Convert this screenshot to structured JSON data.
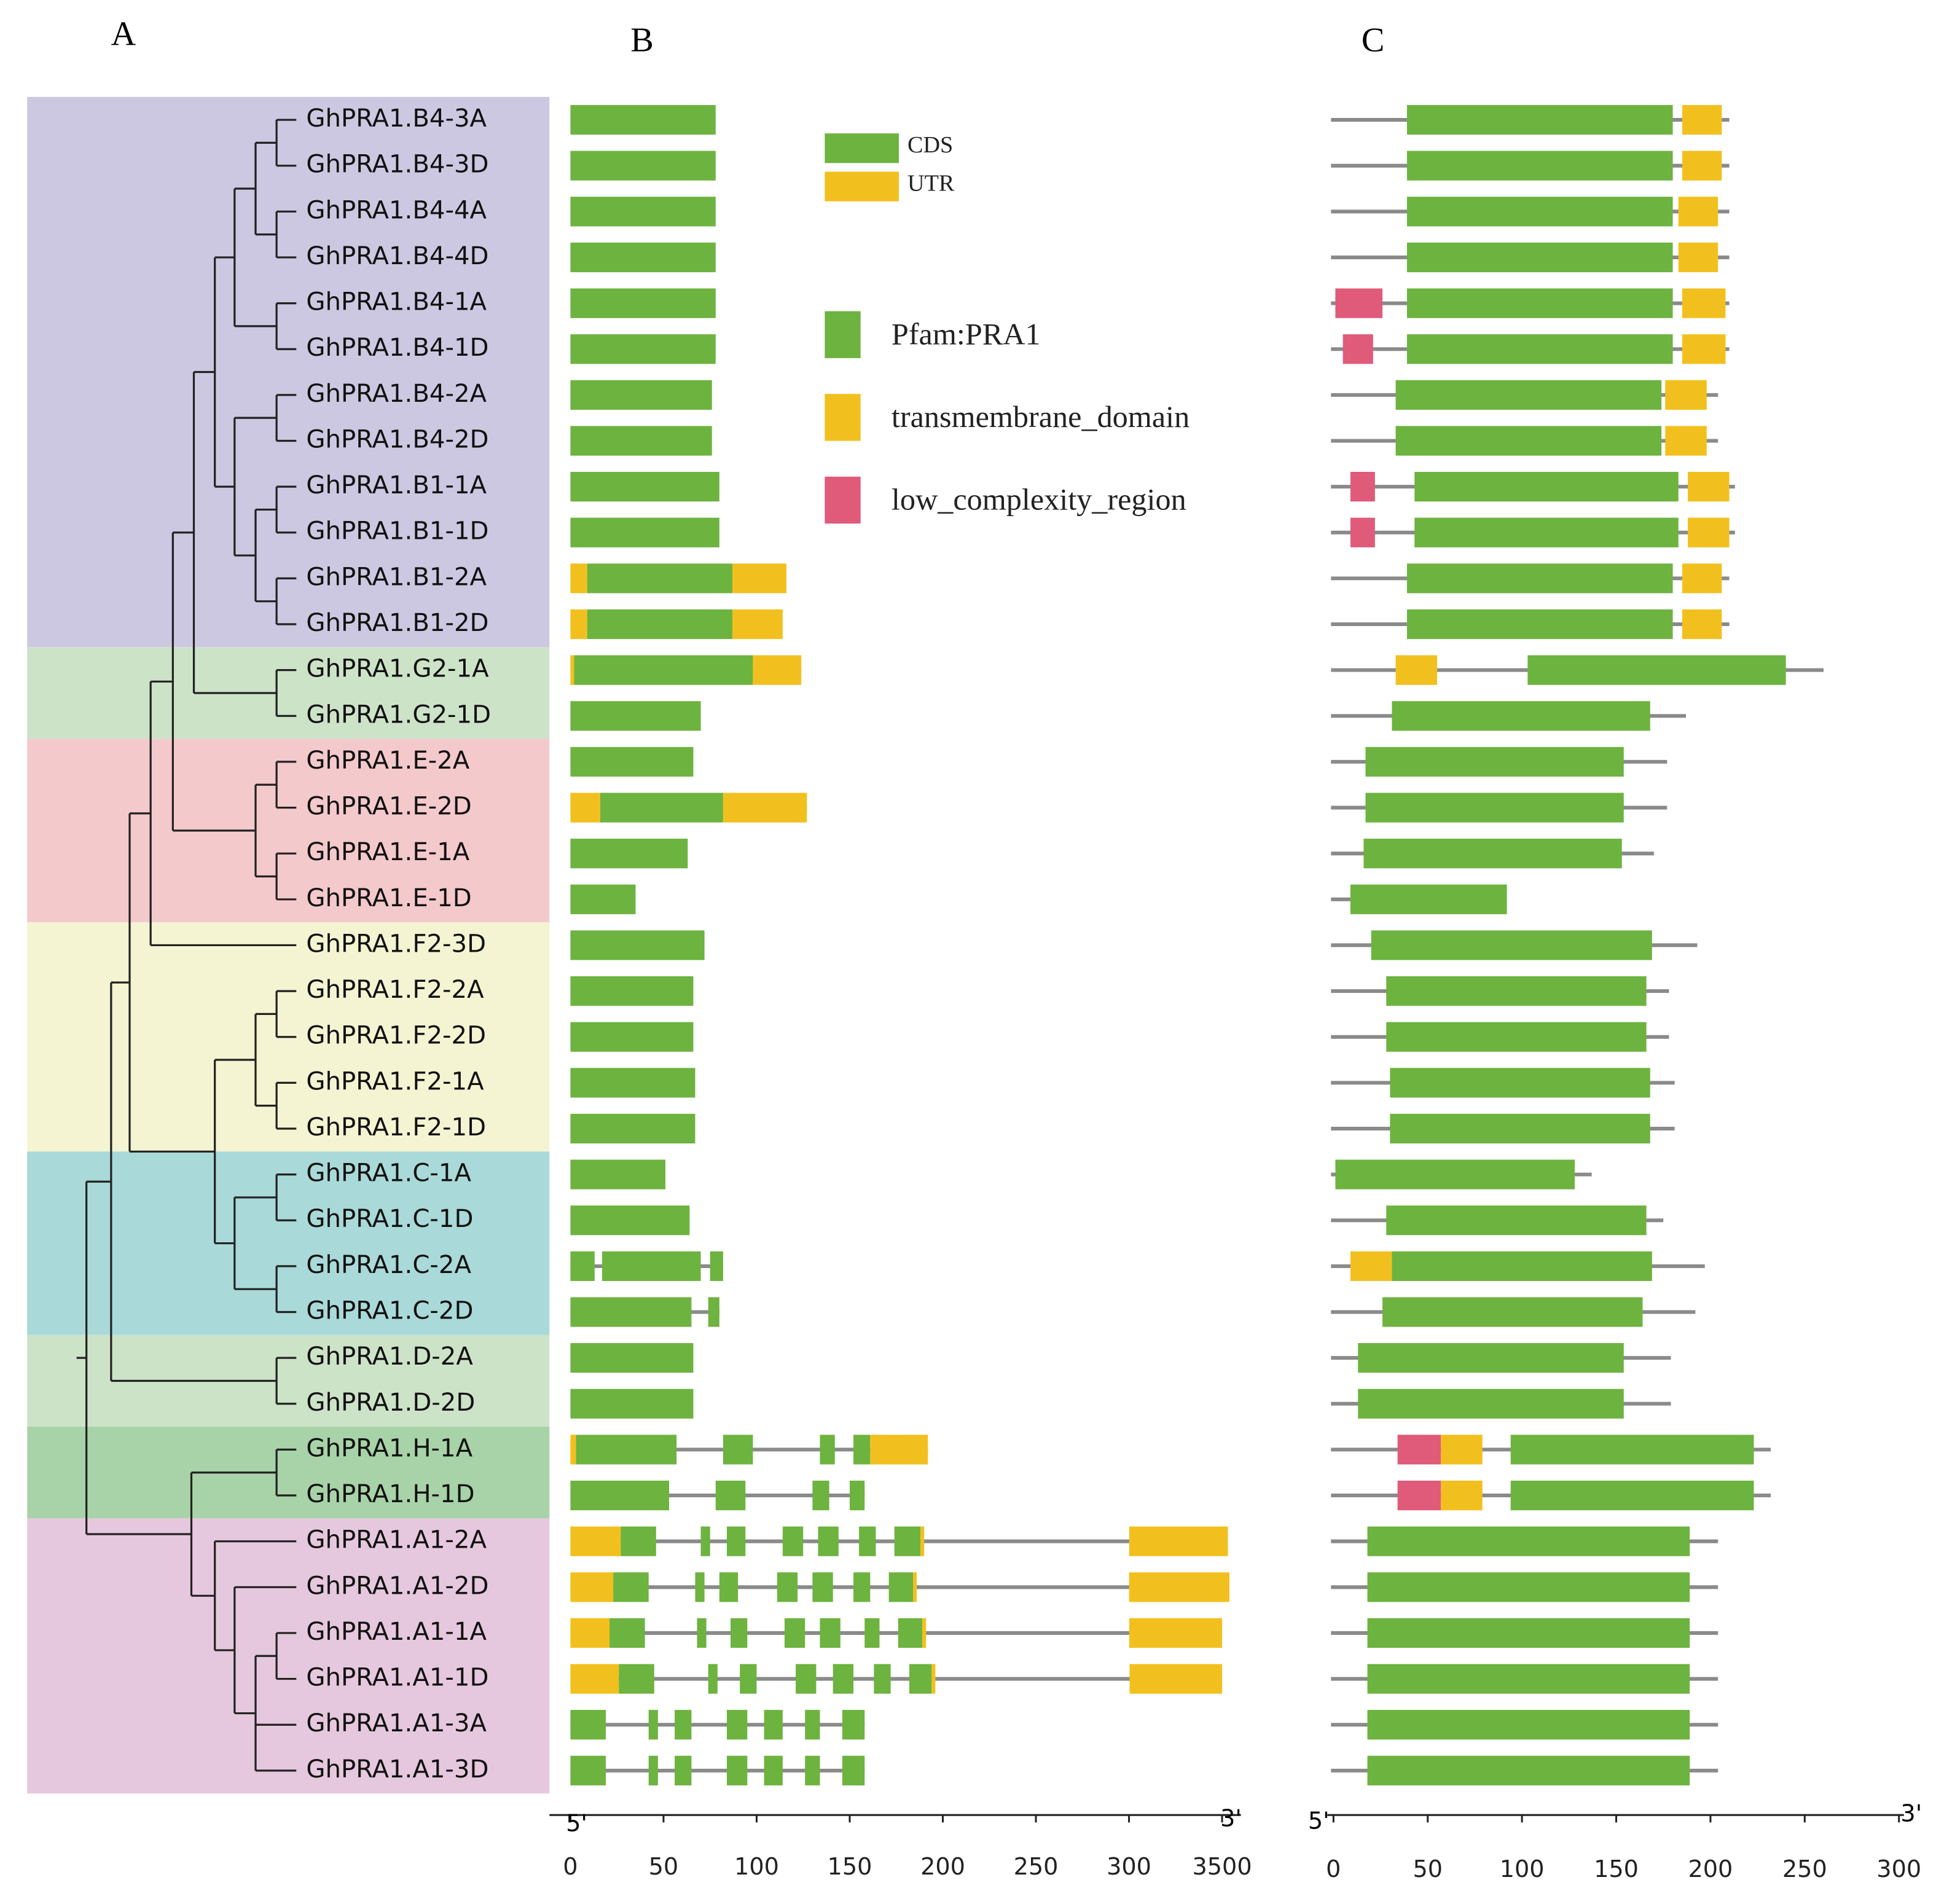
{
  "panels": {
    "A": "A",
    "B": "B",
    "C": "C"
  },
  "genes": [
    "GhPRA1.B4-3A",
    "GhPRA1.B4-3D",
    "GhPRA1.B4-4A",
    "GhPRA1.B4-4D",
    "GhPRA1.B4-1A",
    "GhPRA1.B4-1D",
    "GhPRA1.B4-2A",
    "GhPRA1.B4-2D",
    "GhPRA1.B1-1A",
    "GhPRA1.B1-1D",
    "GhPRA1.B1-2A",
    "GhPRA1.B1-2D",
    "GhPRA1.G2-1A",
    "GhPRA1.G2-1D",
    "GhPRA1.E-2A",
    "GhPRA1.E-2D",
    "GhPRA1.E-1A",
    "GhPRA1.E-1D",
    "GhPRA1.F2-3D",
    "GhPRA1.F2-2A",
    "GhPRA1.F2-2D",
    "GhPRA1.F2-1A",
    "GhPRA1.F2-1D",
    "GhPRA1.C-1A",
    "GhPRA1.C-1D",
    "GhPRA1.C-2A",
    "GhPRA1.C-2D",
    "GhPRA1.D-2A",
    "GhPRA1.D-2D",
    "GhPRA1.H-1A",
    "GhPRA1.H-1D",
    "GhPRA1.A1-2A",
    "GhPRA1.A1-2D",
    "GhPRA1.A1-1A",
    "GhPRA1.A1-1D",
    "GhPRA1.A1-3A",
    "GhPRA1.A1-3D"
  ],
  "legend": {
    "gene_features": [
      {
        "name": "CDS",
        "color": "#6db33f"
      },
      {
        "name": "UTR",
        "color": "#f2c01e"
      }
    ],
    "domains": [
      {
        "name": "Pfam:PRA1",
        "color": "#6db33f"
      },
      {
        "name": "transmembrane_domain",
        "color": "#f2c01e"
      },
      {
        "name": "low_complexity_region",
        "color": "#e05a7a"
      }
    ]
  },
  "gene_structure": {
    "five_prime": "5'",
    "three_prime": "3'",
    "xticks": [
      0,
      50,
      100,
      150,
      200,
      250,
      300,
      3500
    ],
    "genes": [
      [
        [
          "CDS",
          0,
          78
        ]
      ],
      [
        [
          "CDS",
          0,
          78
        ]
      ],
      [
        [
          "CDS",
          0,
          78
        ]
      ],
      [
        [
          "CDS",
          0,
          78
        ]
      ],
      [
        [
          "CDS",
          0,
          78
        ]
      ],
      [
        [
          "CDS",
          0,
          78
        ]
      ],
      [
        [
          "CDS",
          0,
          76
        ]
      ],
      [
        [
          "CDS",
          0,
          76
        ]
      ],
      [
        [
          "CDS",
          0,
          80
        ]
      ],
      [
        [
          "CDS",
          0,
          80
        ]
      ],
      [
        [
          "UTR",
          0,
          9
        ],
        [
          "CDS",
          9,
          87
        ],
        [
          "UTR",
          87,
          116
        ]
      ],
      [
        [
          "UTR",
          0,
          9
        ],
        [
          "CDS",
          9,
          87
        ],
        [
          "UTR",
          87,
          114
        ]
      ],
      [
        [
          "UTR",
          0,
          2
        ],
        [
          "CDS",
          2,
          98
        ],
        [
          "UTR",
          98,
          124
        ]
      ],
      [
        [
          "CDS",
          0,
          70
        ]
      ],
      [
        [
          "CDS",
          0,
          66
        ]
      ],
      [
        [
          "UTR",
          0,
          16
        ],
        [
          "CDS",
          16,
          82
        ],
        [
          "UTR",
          82,
          127
        ]
      ],
      [
        [
          "CDS",
          0,
          63
        ]
      ],
      [
        [
          "CDS",
          0,
          35
        ]
      ],
      [
        [
          "CDS",
          0,
          72
        ]
      ],
      [
        [
          "CDS",
          0,
          66
        ]
      ],
      [
        [
          "CDS",
          0,
          66
        ]
      ],
      [
        [
          "CDS",
          0,
          67
        ]
      ],
      [
        [
          "CDS",
          0,
          67
        ]
      ],
      [
        [
          "CDS",
          0,
          51
        ]
      ],
      [
        [
          "CDS",
          0,
          64
        ]
      ],
      [
        [
          "CDS",
          0,
          13
        ],
        [
          "CDS",
          17,
          70
        ],
        [
          "CDS",
          75,
          82
        ]
      ],
      [
        [
          "CDS",
          0,
          65
        ],
        [
          "CDS",
          74,
          80
        ]
      ],
      [
        [
          "CDS",
          0,
          66
        ]
      ],
      [
        [
          "CDS",
          0,
          66
        ]
      ],
      [
        [
          "UTR",
          0,
          3
        ],
        [
          "CDS",
          3,
          57
        ],
        [
          "CDS",
          82,
          98
        ],
        [
          "CDS",
          134,
          142
        ],
        [
          "CDS",
          152,
          161
        ],
        [
          "UTR",
          161,
          192
        ]
      ],
      [
        [
          "CDS",
          0,
          53
        ],
        [
          "CDS",
          78,
          94
        ],
        [
          "CDS",
          130,
          139
        ],
        [
          "CDS",
          150,
          158
        ]
      ],
      [
        [
          "UTR",
          0,
          27
        ],
        [
          "CDS",
          27,
          46
        ],
        [
          "CDS",
          70,
          75
        ],
        [
          "CDS",
          84,
          94
        ],
        [
          "CDS",
          114,
          125
        ],
        [
          "CDS",
          133,
          144
        ],
        [
          "CDS",
          155,
          164
        ],
        [
          "CDS",
          174,
          188
        ],
        [
          "UTR",
          188,
          190
        ],
        [
          "UTR",
          305,
          3700
        ]
      ],
      [
        [
          "UTR",
          0,
          23
        ],
        [
          "CDS",
          23,
          42
        ],
        [
          "CDS",
          67,
          72
        ],
        [
          "CDS",
          80,
          90
        ],
        [
          "CDS",
          111,
          122
        ],
        [
          "CDS",
          130,
          141
        ],
        [
          "CDS",
          152,
          161
        ],
        [
          "CDS",
          171,
          184
        ],
        [
          "UTR",
          184,
          186
        ],
        [
          "UTR",
          303,
          3750
        ]
      ],
      [
        [
          "UTR",
          0,
          21
        ],
        [
          "CDS",
          21,
          40
        ],
        [
          "CDS",
          68,
          73
        ],
        [
          "CDS",
          86,
          95
        ],
        [
          "CDS",
          115,
          126
        ],
        [
          "CDS",
          134,
          145
        ],
        [
          "CDS",
          158,
          166
        ],
        [
          "CDS",
          176,
          189
        ],
        [
          "UTR",
          189,
          191
        ],
        [
          "UTR",
          307,
          3500
        ]
      ],
      [
        [
          "UTR",
          0,
          26
        ],
        [
          "CDS",
          26,
          45
        ],
        [
          "CDS",
          74,
          79
        ],
        [
          "CDS",
          91,
          100
        ],
        [
          "CDS",
          121,
          132
        ],
        [
          "CDS",
          141,
          152
        ],
        [
          "CDS",
          163,
          172
        ],
        [
          "CDS",
          182,
          194
        ],
        [
          "UTR",
          194,
          196
        ],
        [
          "UTR",
          320,
          3500
        ]
      ],
      [
        [
          "CDS",
          0,
          19
        ],
        [
          "CDS",
          42,
          47
        ],
        [
          "CDS",
          56,
          65
        ],
        [
          "CDS",
          84,
          95
        ],
        [
          "CDS",
          104,
          114
        ],
        [
          "CDS",
          126,
          134
        ],
        [
          "CDS",
          146,
          158
        ]
      ],
      [
        [
          "CDS",
          0,
          19
        ],
        [
          "CDS",
          42,
          47
        ],
        [
          "CDS",
          56,
          65
        ],
        [
          "CDS",
          84,
          95
        ],
        [
          "CDS",
          104,
          114
        ],
        [
          "CDS",
          126,
          134
        ],
        [
          "CDS",
          146,
          158
        ]
      ]
    ]
  },
  "protein_domains": {
    "five_prime": "5'",
    "three_prime": "3'",
    "xlim": [
      0,
      300
    ],
    "xticks": [
      0,
      50,
      100,
      150,
      200,
      250,
      300
    ],
    "proteins": [
      {
        "length": 210,
        "domains": [
          [
            "Pfam:PRA1",
            39,
            180
          ],
          [
            "transmembrane_domain",
            185,
            206
          ]
        ]
      },
      {
        "length": 210,
        "domains": [
          [
            "Pfam:PRA1",
            39,
            180
          ],
          [
            "transmembrane_domain",
            185,
            206
          ]
        ]
      },
      {
        "length": 210,
        "domains": [
          [
            "Pfam:PRA1",
            39,
            180
          ],
          [
            "transmembrane_domain",
            183,
            204
          ]
        ]
      },
      {
        "length": 210,
        "domains": [
          [
            "Pfam:PRA1",
            39,
            180
          ],
          [
            "transmembrane_domain",
            183,
            204
          ]
        ]
      },
      {
        "length": 210,
        "domains": [
          [
            "low_complexity_region",
            1,
            26
          ],
          [
            "Pfam:PRA1",
            39,
            180
          ],
          [
            "transmembrane_domain",
            185,
            208
          ]
        ]
      },
      {
        "length": 210,
        "domains": [
          [
            "low_complexity_region",
            5,
            21
          ],
          [
            "Pfam:PRA1",
            39,
            180
          ],
          [
            "transmembrane_domain",
            185,
            208
          ]
        ]
      },
      {
        "length": 204,
        "domains": [
          [
            "Pfam:PRA1",
            33,
            174
          ],
          [
            "transmembrane_domain",
            176,
            198
          ]
        ]
      },
      {
        "length": 204,
        "domains": [
          [
            "Pfam:PRA1",
            33,
            174
          ],
          [
            "transmembrane_domain",
            176,
            198
          ]
        ]
      },
      {
        "length": 213,
        "domains": [
          [
            "low_complexity_region",
            9,
            22
          ],
          [
            "Pfam:PRA1",
            43,
            183
          ],
          [
            "transmembrane_domain",
            188,
            210
          ]
        ]
      },
      {
        "length": 213,
        "domains": [
          [
            "low_complexity_region",
            9,
            22
          ],
          [
            "Pfam:PRA1",
            43,
            183
          ],
          [
            "transmembrane_domain",
            188,
            210
          ]
        ]
      },
      {
        "length": 210,
        "domains": [
          [
            "Pfam:PRA1",
            39,
            180
          ],
          [
            "transmembrane_domain",
            185,
            206
          ]
        ]
      },
      {
        "length": 210,
        "domains": [
          [
            "Pfam:PRA1",
            39,
            180
          ],
          [
            "transmembrane_domain",
            185,
            206
          ]
        ]
      },
      {
        "length": 260,
        "domains": [
          [
            "transmembrane_domain",
            33,
            55
          ],
          [
            "Pfam:PRA1",
            103,
            240
          ]
        ]
      },
      {
        "length": 187,
        "domains": [
          [
            "Pfam:PRA1",
            31,
            168
          ]
        ]
      },
      {
        "length": 177,
        "domains": [
          [
            "Pfam:PRA1",
            17,
            154
          ]
        ]
      },
      {
        "length": 177,
        "domains": [
          [
            "Pfam:PRA1",
            17,
            154
          ]
        ]
      },
      {
        "length": 170,
        "domains": [
          [
            "Pfam:PRA1",
            16,
            153
          ]
        ]
      },
      {
        "length": 92,
        "domains": [
          [
            "Pfam:PRA1",
            9,
            92
          ]
        ]
      },
      {
        "length": 193,
        "domains": [
          [
            "Pfam:PRA1",
            20,
            169
          ]
        ]
      },
      {
        "length": 178,
        "domains": [
          [
            "Pfam:PRA1",
            28,
            166
          ]
        ]
      },
      {
        "length": 178,
        "domains": [
          [
            "Pfam:PRA1",
            28,
            166
          ]
        ]
      },
      {
        "length": 181,
        "domains": [
          [
            "Pfam:PRA1",
            30,
            168
          ]
        ]
      },
      {
        "length": 181,
        "domains": [
          [
            "Pfam:PRA1",
            30,
            168
          ]
        ]
      },
      {
        "length": 137,
        "domains": [
          [
            "Pfam:PRA1",
            1,
            128
          ]
        ]
      },
      {
        "length": 175,
        "domains": [
          [
            "Pfam:PRA1",
            28,
            166
          ]
        ]
      },
      {
        "length": 197,
        "domains": [
          [
            "transmembrane_domain",
            9,
            31
          ],
          [
            "Pfam:PRA1",
            31,
            169
          ]
        ]
      },
      {
        "length": 192,
        "domains": [
          [
            "Pfam:PRA1",
            26,
            164
          ]
        ]
      },
      {
        "length": 179,
        "domains": [
          [
            "Pfam:PRA1",
            13,
            154
          ]
        ]
      },
      {
        "length": 179,
        "domains": [
          [
            "Pfam:PRA1",
            13,
            154
          ]
        ]
      },
      {
        "length": 232,
        "domains": [
          [
            "low_complexity_region",
            34,
            57
          ],
          [
            "transmembrane_domain",
            57,
            79
          ],
          [
            "Pfam:PRA1",
            94,
            223
          ]
        ]
      },
      {
        "length": 232,
        "domains": [
          [
            "low_complexity_region",
            34,
            57
          ],
          [
            "transmembrane_domain",
            57,
            79
          ],
          [
            "Pfam:PRA1",
            94,
            223
          ]
        ]
      },
      {
        "length": 204,
        "domains": [
          [
            "Pfam:PRA1",
            18,
            189
          ]
        ]
      },
      {
        "length": 204,
        "domains": [
          [
            "Pfam:PRA1",
            18,
            189
          ]
        ]
      },
      {
        "length": 204,
        "domains": [
          [
            "Pfam:PRA1",
            18,
            189
          ]
        ]
      },
      {
        "length": 204,
        "domains": [
          [
            "Pfam:PRA1",
            18,
            189
          ]
        ]
      },
      {
        "length": 204,
        "domains": [
          [
            "Pfam:PRA1",
            18,
            189
          ]
        ]
      },
      {
        "length": 204,
        "domains": [
          [
            "Pfam:PRA1",
            18,
            189
          ]
        ]
      }
    ]
  }
}
